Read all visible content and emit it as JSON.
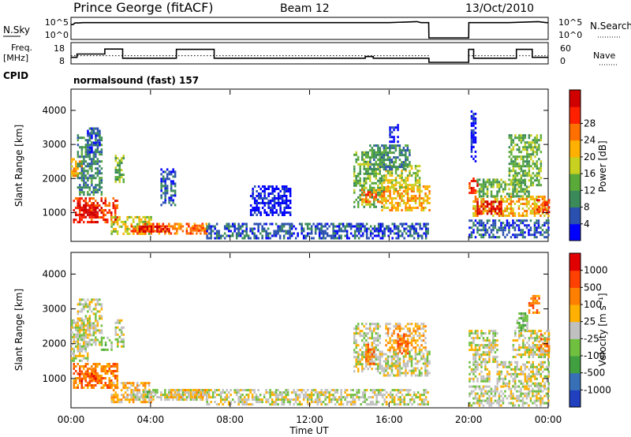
{
  "header": {
    "station": "Prince George (fitACF)",
    "beam": "Beam 12",
    "date": "13/Oct/2010"
  },
  "colors": {
    "power": [
      "#0000ff",
      "#2a50b0",
      "#3a8a5a",
      "#5aaa3a",
      "#c8d020",
      "#ffb000",
      "#ff7000",
      "#ff2000",
      "#d00000"
    ],
    "velocity": [
      "#2040c0",
      "#3870b8",
      "#40a040",
      "#70c040",
      "#c0c0c0",
      "#ffb000",
      "#ff8000",
      "#ff4000",
      "#e00000"
    ]
  },
  "chart_data": [
    {
      "type": "line",
      "panel": "noise",
      "left_label": "N.Sky",
      "right_label": "N.Search",
      "y_ticks_left": [
        "10^5",
        "10^0"
      ],
      "y_ticks_right": [
        "10^5",
        "10^0"
      ],
      "series": [
        {
          "name": "N.Sky",
          "x_hours": [
            0,
            0.1,
            0.2,
            0.4,
            0.6,
            4,
            8,
            12,
            16,
            17.4,
            17.6,
            17.99,
            18,
            20,
            20.01,
            20.2,
            22,
            23.5,
            23.9,
            24
          ],
          "values": [
            4,
            4,
            4.5,
            4.5,
            4.6,
            4.6,
            4.6,
            4.6,
            4.6,
            4.9,
            4.6,
            4.6,
            0,
            0,
            4.6,
            4.6,
            4.6,
            4.9,
            4.6,
            4.6
          ]
        }
      ]
    },
    {
      "type": "line",
      "panel": "frequency",
      "left_label": "Freq.",
      "left_unit": "[MHz]",
      "right_label": "Nave",
      "y_left": [
        8,
        18
      ],
      "y_right": [
        0,
        60
      ],
      "x_hours": [
        0,
        0.3,
        0.3,
        1.7,
        1.7,
        2.6,
        2.6,
        5.3,
        5.3,
        7.2,
        7.2,
        14.8,
        14.8,
        15.2,
        15.2,
        18,
        18,
        20,
        20,
        20.25,
        20.25,
        22.4,
        22.4,
        23.2,
        23.2,
        24
      ],
      "freq_mhz": [
        11,
        11,
        13,
        13,
        16,
        16,
        10.5,
        10.5,
        15.8,
        15.8,
        10.5,
        10.5,
        11.5,
        11.5,
        10.5,
        10.5,
        8,
        8,
        15.8,
        15.8,
        10.5,
        10.5,
        15.8,
        15.8,
        11,
        11
      ],
      "nave_level": 24
    },
    {
      "type": "heatmap",
      "panel": "cpid",
      "label": "CPID",
      "text": "normalsound (fast) 157"
    },
    {
      "type": "heatmap",
      "panel": "power",
      "ylabel": "Slant Range [km]",
      "ylim": [
        180,
        4600
      ],
      "y_ticks": [
        1000,
        2000,
        3000,
        4000
      ],
      "colorbar_title": "Power [dB]",
      "colorbar_ticks": [
        "4",
        "8",
        "12",
        "16",
        "20",
        "24",
        "28"
      ],
      "regions": [
        {
          "t0": 0.1,
          "t1": 2.3,
          "r0": 750,
          "r1": 1450,
          "level": 7
        },
        {
          "t0": 0.4,
          "t1": 1.3,
          "r0": 900,
          "r1": 1250,
          "level": 8
        },
        {
          "t0": 0.0,
          "t1": 0.5,
          "r0": 2100,
          "r1": 2600,
          "level": 5
        },
        {
          "t0": 0.3,
          "t1": 1.5,
          "r0": 1500,
          "r1": 3300,
          "level": 2
        },
        {
          "t0": 0.8,
          "t1": 1.4,
          "r0": 2800,
          "r1": 3500,
          "level": 1
        },
        {
          "t0": 2.2,
          "t1": 2.6,
          "r0": 1900,
          "r1": 2700,
          "level": 3
        },
        {
          "t0": 2.0,
          "t1": 4.0,
          "r0": 350,
          "r1": 900,
          "level": 4
        },
        {
          "t0": 3.0,
          "t1": 6.8,
          "r0": 400,
          "r1": 700,
          "level": 6
        },
        {
          "t0": 3.4,
          "t1": 5.0,
          "r0": 430,
          "r1": 620,
          "level": 8
        },
        {
          "t0": 6.0,
          "t1": 6.6,
          "r0": 450,
          "r1": 650,
          "level": 6
        },
        {
          "t0": 4.5,
          "t1": 5.2,
          "r0": 1200,
          "r1": 2300,
          "level": 1
        },
        {
          "t0": 6.8,
          "t1": 18.0,
          "r0": 250,
          "r1": 700,
          "level": 1
        },
        {
          "t0": 9.0,
          "t1": 11.0,
          "r0": 900,
          "r1": 1800,
          "level": 0
        },
        {
          "t0": 14.2,
          "t1": 15.6,
          "r0": 1200,
          "r1": 2800,
          "level": 3
        },
        {
          "t0": 14.6,
          "t1": 15.8,
          "r0": 1300,
          "r1": 1700,
          "level": 6
        },
        {
          "t0": 15.6,
          "t1": 18.0,
          "r0": 1100,
          "r1": 1800,
          "level": 5
        },
        {
          "t0": 15.7,
          "t1": 17.5,
          "r0": 1700,
          "r1": 2400,
          "level": 4
        },
        {
          "t0": 15.0,
          "t1": 17.0,
          "r0": 2300,
          "r1": 3000,
          "level": 2
        },
        {
          "t0": 16.0,
          "t1": 16.4,
          "r0": 3100,
          "r1": 3600,
          "level": 0
        },
        {
          "t0": 20.0,
          "t1": 20.4,
          "r0": 1600,
          "r1": 2100,
          "level": 7
        },
        {
          "t0": 20.2,
          "t1": 24.0,
          "r0": 900,
          "r1": 1500,
          "level": 5
        },
        {
          "t0": 20.4,
          "t1": 21.6,
          "r0": 1000,
          "r1": 1350,
          "level": 8
        },
        {
          "t0": 20.4,
          "t1": 23.0,
          "r0": 1500,
          "r1": 2000,
          "level": 3
        },
        {
          "t0": 22.0,
          "t1": 23.6,
          "r0": 1800,
          "r1": 3300,
          "level": 3
        },
        {
          "t0": 23.4,
          "t1": 24.0,
          "r0": 1000,
          "r1": 1400,
          "level": 7
        },
        {
          "t0": 20.0,
          "t1": 24.0,
          "r0": 250,
          "r1": 800,
          "level": 1
        },
        {
          "t0": 20.1,
          "t1": 20.3,
          "r0": 2500,
          "r1": 4000,
          "level": 0
        }
      ]
    },
    {
      "type": "heatmap",
      "panel": "velocity",
      "ylabel": "Slant Range [km]",
      "ylim": [
        180,
        4600
      ],
      "y_ticks": [
        1000,
        2000,
        3000,
        4000
      ],
      "xlabel": "Time UT",
      "x_ticks": [
        "00:00",
        "04:00",
        "08:00",
        "12:00",
        "16:00",
        "20:00",
        "00:00"
      ],
      "colorbar_title": "Velocity [m s⁻¹]",
      "colorbar_ticks": [
        "1000",
        "500",
        "100",
        "25",
        "-25",
        "-100",
        "-500",
        "-1000"
      ],
      "regions": [
        {
          "t0": 0.1,
          "t1": 2.3,
          "r0": 750,
          "r1": 1450,
          "level": 6
        },
        {
          "t0": 0.3,
          "t1": 1.2,
          "r0": 900,
          "r1": 1300,
          "level": 7
        },
        {
          "t0": 0.0,
          "t1": 0.8,
          "r0": 1500,
          "r1": 2700,
          "level": 4
        },
        {
          "t0": 0.3,
          "t1": 1.5,
          "r0": 2000,
          "r1": 3300,
          "level": 4
        },
        {
          "t0": 1.5,
          "t1": 2.0,
          "r0": 1800,
          "r1": 2200,
          "level": 3
        },
        {
          "t0": 2.2,
          "t1": 2.6,
          "r0": 1900,
          "r1": 2700,
          "level": 4
        },
        {
          "t0": 2.0,
          "t1": 4.0,
          "r0": 350,
          "r1": 900,
          "level": 5
        },
        {
          "t0": 3.0,
          "t1": 6.8,
          "r0": 400,
          "r1": 700,
          "level": 4
        },
        {
          "t0": 5.0,
          "t1": 6.8,
          "r0": 450,
          "r1": 700,
          "level": 5
        },
        {
          "t0": 3.6,
          "t1": 4.2,
          "r0": 500,
          "r1": 650,
          "level": 3
        },
        {
          "t0": 6.8,
          "t1": 18.0,
          "r0": 250,
          "r1": 700,
          "level": 4
        },
        {
          "t0": 14.2,
          "t1": 15.5,
          "r0": 1200,
          "r1": 2600,
          "level": 4
        },
        {
          "t0": 14.8,
          "t1": 15.2,
          "r0": 1400,
          "r1": 2000,
          "level": 6
        },
        {
          "t0": 15.5,
          "t1": 18.0,
          "r0": 1100,
          "r1": 1800,
          "level": 4
        },
        {
          "t0": 15.8,
          "t1": 17.8,
          "r0": 1800,
          "r1": 2600,
          "level": 5
        },
        {
          "t0": 16.4,
          "t1": 16.9,
          "r0": 1700,
          "r1": 2300,
          "level": 6
        },
        {
          "t0": 20.0,
          "t1": 21.4,
          "r0": 1500,
          "r1": 2400,
          "level": 4
        },
        {
          "t0": 21.4,
          "t1": 24.0,
          "r0": 800,
          "r1": 1500,
          "level": 4
        },
        {
          "t0": 20.0,
          "t1": 21.0,
          "r0": 900,
          "r1": 1500,
          "level": 4
        },
        {
          "t0": 22.2,
          "t1": 24.0,
          "r0": 1600,
          "r1": 2400,
          "level": 4
        },
        {
          "t0": 22.4,
          "t1": 22.9,
          "r0": 2400,
          "r1": 2900,
          "level": 3
        },
        {
          "t0": 23.5,
          "t1": 24.0,
          "r0": 1800,
          "r1": 2300,
          "level": 6
        },
        {
          "t0": 23.0,
          "t1": 23.5,
          "r0": 2900,
          "r1": 3400,
          "level": 6
        },
        {
          "t0": 20.0,
          "t1": 24.0,
          "r0": 250,
          "r1": 800,
          "level": 4
        }
      ]
    }
  ]
}
